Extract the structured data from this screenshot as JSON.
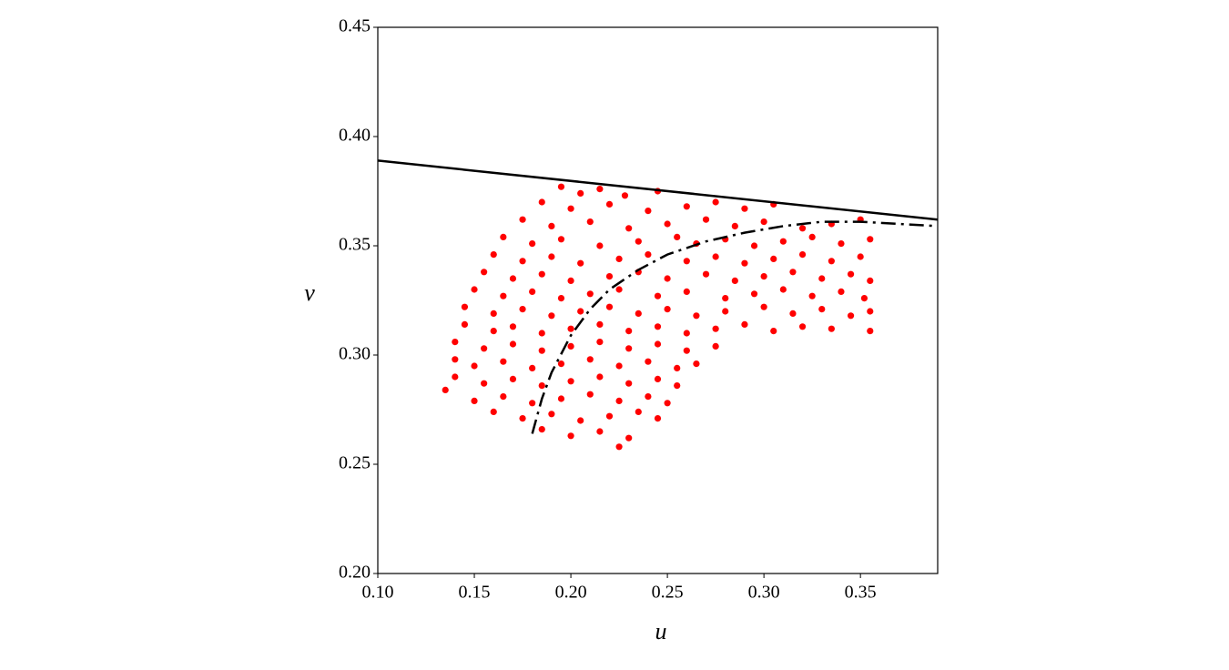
{
  "chart_data": {
    "type": "scatter",
    "x_label": "u",
    "y_label": "v",
    "color": "#ff0000",
    "xlim": [
      0.1,
      0.39
    ],
    "ylim": [
      0.2,
      0.45
    ],
    "xticks": [
      {
        "value": 0.1,
        "label": "0.10"
      },
      0.15,
      {
        "value": 0.2,
        "label": "0.20"
      },
      0.25,
      {
        "value": 0.3,
        "label": "0.30"
      },
      0.35
    ],
    "yticks": [
      {
        "value": 0.2,
        "label": "0.20"
      },
      0.25,
      {
        "value": 0.3,
        "label": "0.30"
      },
      0.35,
      {
        "value": 0.4,
        "label": "0.40"
      },
      0.45
    ],
    "grid": false,
    "x": [
      0.195,
      0.205,
      0.215,
      0.228,
      0.245,
      0.185,
      0.2,
      0.22,
      0.24,
      0.26,
      0.275,
      0.29,
      0.305,
      0.175,
      0.19,
      0.21,
      0.23,
      0.25,
      0.27,
      0.285,
      0.3,
      0.32,
      0.335,
      0.35,
      0.165,
      0.18,
      0.195,
      0.215,
      0.235,
      0.255,
      0.265,
      0.28,
      0.295,
      0.31,
      0.325,
      0.34,
      0.355,
      0.16,
      0.175,
      0.19,
      0.205,
      0.225,
      0.24,
      0.26,
      0.275,
      0.29,
      0.305,
      0.32,
      0.335,
      0.35,
      0.155,
      0.17,
      0.185,
      0.2,
      0.22,
      0.235,
      0.25,
      0.27,
      0.285,
      0.3,
      0.315,
      0.33,
      0.345,
      0.355,
      0.15,
      0.165,
      0.18,
      0.195,
      0.21,
      0.225,
      0.245,
      0.26,
      0.28,
      0.295,
      0.31,
      0.325,
      0.34,
      0.352,
      0.145,
      0.16,
      0.175,
      0.19,
      0.205,
      0.22,
      0.235,
      0.25,
      0.265,
      0.28,
      0.3,
      0.315,
      0.33,
      0.345,
      0.355,
      0.145,
      0.16,
      0.17,
      0.185,
      0.2,
      0.215,
      0.23,
      0.245,
      0.26,
      0.275,
      0.29,
      0.305,
      0.32,
      0.335,
      0.355,
      0.14,
      0.155,
      0.17,
      0.185,
      0.2,
      0.215,
      0.23,
      0.245,
      0.26,
      0.275,
      0.14,
      0.15,
      0.165,
      0.18,
      0.195,
      0.21,
      0.225,
      0.24,
      0.255,
      0.265,
      0.14,
      0.155,
      0.17,
      0.185,
      0.2,
      0.215,
      0.23,
      0.245,
      0.255,
      0.135,
      0.15,
      0.165,
      0.18,
      0.195,
      0.21,
      0.225,
      0.24,
      0.25,
      0.16,
      0.175,
      0.19,
      0.205,
      0.22,
      0.235,
      0.245,
      0.185,
      0.2,
      0.215,
      0.23,
      0.225
    ],
    "values": [
      0.377,
      0.374,
      0.376,
      0.373,
      0.375,
      0.37,
      0.367,
      0.369,
      0.366,
      0.368,
      0.37,
      0.367,
      0.369,
      0.362,
      0.359,
      0.361,
      0.358,
      0.36,
      0.362,
      0.359,
      0.361,
      0.358,
      0.36,
      0.362,
      0.354,
      0.351,
      0.353,
      0.35,
      0.352,
      0.354,
      0.351,
      0.353,
      0.35,
      0.352,
      0.354,
      0.351,
      0.353,
      0.346,
      0.343,
      0.345,
      0.342,
      0.344,
      0.346,
      0.343,
      0.345,
      0.342,
      0.344,
      0.346,
      0.343,
      0.345,
      0.338,
      0.335,
      0.337,
      0.334,
      0.336,
      0.338,
      0.335,
      0.337,
      0.334,
      0.336,
      0.338,
      0.335,
      0.337,
      0.334,
      0.33,
      0.327,
      0.329,
      0.326,
      0.328,
      0.33,
      0.327,
      0.329,
      0.326,
      0.328,
      0.33,
      0.327,
      0.329,
      0.326,
      0.322,
      0.319,
      0.321,
      0.318,
      0.32,
      0.322,
      0.319,
      0.321,
      0.318,
      0.32,
      0.322,
      0.319,
      0.321,
      0.318,
      0.32,
      0.314,
      0.311,
      0.313,
      0.31,
      0.312,
      0.314,
      0.311,
      0.313,
      0.31,
      0.312,
      0.314,
      0.311,
      0.313,
      0.312,
      0.311,
      0.306,
      0.303,
      0.305,
      0.302,
      0.304,
      0.306,
      0.303,
      0.305,
      0.302,
      0.304,
      0.298,
      0.295,
      0.297,
      0.294,
      0.296,
      0.298,
      0.295,
      0.297,
      0.294,
      0.296,
      0.29,
      0.287,
      0.289,
      0.286,
      0.288,
      0.29,
      0.287,
      0.289,
      0.286,
      0.284,
      0.279,
      0.281,
      0.278,
      0.28,
      0.282,
      0.279,
      0.281,
      0.278,
      0.274,
      0.271,
      0.273,
      0.27,
      0.272,
      0.274,
      0.271,
      0.266,
      0.263,
      0.265,
      0.262,
      0.258
    ],
    "lines": [
      {
        "style": "solid",
        "color": "#000000",
        "x": [
          0.1,
          0.39
        ],
        "values": [
          0.389,
          0.362
        ]
      },
      {
        "style": "dashdot",
        "color": "#000000",
        "x": [
          0.18,
          0.185,
          0.19,
          0.2,
          0.21,
          0.22,
          0.235,
          0.25,
          0.27,
          0.29,
          0.31,
          0.33,
          0.35,
          0.37,
          0.39
        ],
        "values": [
          0.264,
          0.28,
          0.292,
          0.309,
          0.321,
          0.33,
          0.339,
          0.346,
          0.352,
          0.356,
          0.359,
          0.361,
          0.361,
          0.36,
          0.359
        ]
      }
    ]
  }
}
